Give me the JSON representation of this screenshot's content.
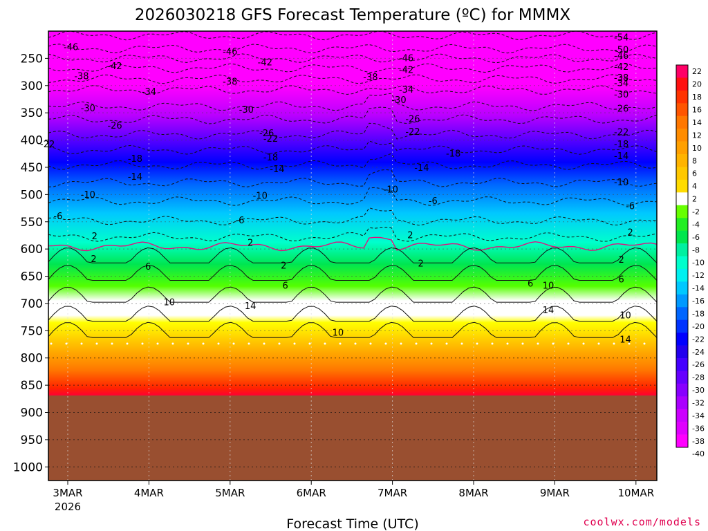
{
  "chart_data": {
    "type": "heatmap",
    "title": "2026030218 GFS Forecast Temperature (ºC) for MMMX",
    "xlabel": "Forecast Time (UTC)",
    "x_ticks": [
      "3MAR",
      "4MAR",
      "5MAR",
      "6MAR",
      "7MAR",
      "8MAR",
      "9MAR",
      "10MAR"
    ],
    "x_tick_year": "2026",
    "y_ticks": [
      250,
      300,
      350,
      400,
      450,
      500,
      550,
      600,
      650,
      700,
      750,
      800,
      850,
      900,
      950,
      1000
    ],
    "ylim": [
      1025,
      200
    ],
    "y_scale": "linear pressure (hPa), inverted",
    "surface_pressure_hpa": 775,
    "colorbar": {
      "levels": [
        22,
        20,
        18,
        16,
        14,
        12,
        10,
        8,
        6,
        4,
        2,
        -2,
        -4,
        -6,
        -8,
        -10,
        -12,
        -14,
        -16,
        -18,
        -20,
        -22,
        -24,
        -26,
        -28,
        -30,
        -32,
        -34,
        -36,
        -38,
        -40
      ],
      "colors": [
        "#ff0066",
        "#ff1010",
        "#ff3300",
        "#ff5500",
        "#ff7700",
        "#ff8c00",
        "#ffa000",
        "#ffb400",
        "#ffc800",
        "#ffdc00",
        "#ffffff",
        "#66ff00",
        "#22ee22",
        "#00e64d",
        "#00f0a0",
        "#00ffcc",
        "#00f0f0",
        "#00c8ff",
        "#0099ff",
        "#0066ff",
        "#0033ff",
        "#0000ff",
        "#2200ee",
        "#4400ff",
        "#6600ff",
        "#8800ff",
        "#aa00ff",
        "#cc00ff",
        "#e000ff",
        "#ff00ff"
      ]
    },
    "isotherm_labels": [
      {
        "value": "-54",
        "t": 6.82,
        "p": 212
      },
      {
        "value": "-50",
        "t": 6.82,
        "p": 235
      },
      {
        "value": "-46",
        "t": 0.04,
        "p": 230
      },
      {
        "value": "-46",
        "t": 2.0,
        "p": 238
      },
      {
        "value": "-46",
        "t": 4.17,
        "p": 250
      },
      {
        "value": "-46",
        "t": 6.82,
        "p": 246
      },
      {
        "value": "-42",
        "t": 0.58,
        "p": 265
      },
      {
        "value": "-42",
        "t": 2.43,
        "p": 258
      },
      {
        "value": "-42",
        "t": 4.17,
        "p": 272
      },
      {
        "value": "-42",
        "t": 6.82,
        "p": 266
      },
      {
        "value": "-38",
        "t": 0.17,
        "p": 283
      },
      {
        "value": "-38",
        "t": 2.0,
        "p": 293
      },
      {
        "value": "-38",
        "t": 3.73,
        "p": 285
      },
      {
        "value": "-38",
        "t": 6.82,
        "p": 286
      },
      {
        "value": "-34",
        "t": 1.0,
        "p": 312
      },
      {
        "value": "-34",
        "t": 4.17,
        "p": 308
      },
      {
        "value": "-34",
        "t": 6.82,
        "p": 296
      },
      {
        "value": "-30",
        "t": 0.25,
        "p": 342
      },
      {
        "value": "-30",
        "t": 2.2,
        "p": 345
      },
      {
        "value": "-30",
        "t": 4.08,
        "p": 327
      },
      {
        "value": "-30",
        "t": 6.82,
        "p": 317
      },
      {
        "value": "-26",
        "t": 0.58,
        "p": 374
      },
      {
        "value": "-26",
        "t": 2.45,
        "p": 388
      },
      {
        "value": "-26",
        "t": 4.25,
        "p": 362
      },
      {
        "value": "-26",
        "t": 6.82,
        "p": 343
      },
      {
        "value": "-22",
        "t": -0.25,
        "p": 408
      },
      {
        "value": "-22",
        "t": 2.5,
        "p": 398
      },
      {
        "value": "-22",
        "t": 4.25,
        "p": 385
      },
      {
        "value": "-22",
        "t": 6.82,
        "p": 386
      },
      {
        "value": "-18",
        "t": 0.83,
        "p": 435
      },
      {
        "value": "-18",
        "t": 2.5,
        "p": 432
      },
      {
        "value": "-18",
        "t": 4.75,
        "p": 425
      },
      {
        "value": "-18",
        "t": 6.82,
        "p": 408
      },
      {
        "value": "-14",
        "t": 0.83,
        "p": 468
      },
      {
        "value": "-14",
        "t": 2.58,
        "p": 454
      },
      {
        "value": "-14",
        "t": 4.36,
        "p": 451
      },
      {
        "value": "-14",
        "t": 6.82,
        "p": 430
      },
      {
        "value": "-10",
        "t": 0.25,
        "p": 501
      },
      {
        "value": "-10",
        "t": 2.37,
        "p": 503
      },
      {
        "value": "-10",
        "t": 3.98,
        "p": 491
      },
      {
        "value": "-10",
        "t": 6.82,
        "p": 478
      },
      {
        "value": "-6",
        "t": -0.12,
        "p": 540
      },
      {
        "value": "-6",
        "t": 2.12,
        "p": 548
      },
      {
        "value": "-6",
        "t": 4.5,
        "p": 512
      },
      {
        "value": "-6",
        "t": 6.93,
        "p": 522
      },
      {
        "value": "2",
        "t": 0.33,
        "p": 577
      },
      {
        "value": "2",
        "t": 2.25,
        "p": 589
      },
      {
        "value": "2",
        "t": 4.22,
        "p": 575
      },
      {
        "value": "2",
        "t": 6.93,
        "p": 570
      },
      {
        "value": "2",
        "t": 0.32,
        "p": 619
      },
      {
        "value": "2",
        "t": 2.66,
        "p": 631
      },
      {
        "value": "2",
        "t": 4.35,
        "p": 627
      },
      {
        "value": "2",
        "t": 6.82,
        "p": 620
      },
      {
        "value": "6",
        "t": 0.99,
        "p": 633
      },
      {
        "value": "6",
        "t": 2.68,
        "p": 668
      },
      {
        "value": "6",
        "t": 5.7,
        "p": 664
      },
      {
        "value": "6",
        "t": 6.82,
        "p": 656
      },
      {
        "value": "10",
        "t": 1.25,
        "p": 698
      },
      {
        "value": "10",
        "t": 3.33,
        "p": 754
      },
      {
        "value": "10",
        "t": 5.92,
        "p": 668
      },
      {
        "value": "10",
        "t": 6.87,
        "p": 722
      },
      {
        "value": "14",
        "t": 2.25,
        "p": 705
      },
      {
        "value": "14",
        "t": 5.92,
        "p": 713
      },
      {
        "value": "14",
        "t": 6.87,
        "p": 767
      }
    ]
  },
  "credit": "coolwx.com/models",
  "colors": {
    "ground": "#994f30",
    "zero_isotherm": "#e0117f",
    "surface_dots": "#ffffff"
  }
}
